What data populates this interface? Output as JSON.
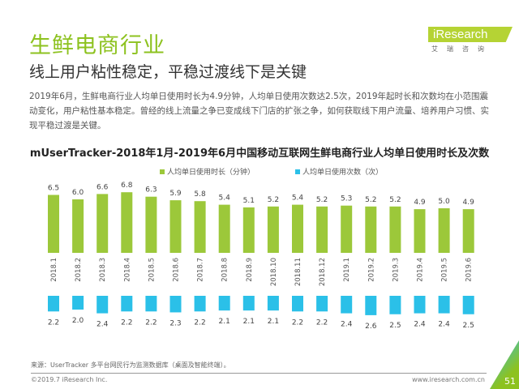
{
  "header": {
    "title": "生鲜电商行业",
    "subtitle": "线上用户粘性稳定，平稳过渡线下是关键",
    "body": "2019年6月，生鲜电商行业人均单日使用时长为4.9分钟，人均单日使用次数达2.5次，2019年起时长和次数均在小范围震动变化，用户粘性基本稳定。曾经的线上流量之争已变成线下门店的扩张之争，如何获取线下用户流量、培养用户习惯、实现平稳过渡是关键。"
  },
  "logo": {
    "text": "iResearch",
    "cn": "艾瑞咨询"
  },
  "footer": {
    "source": "来源：UserTracker 多平台网民行为监测数据库（桌面及智能终端）。",
    "copyright": "©2019.7 iResearch Inc.",
    "url": "www.iresearch.com.cn",
    "page": "51"
  },
  "colors": {
    "green": "#9cc83a",
    "blue": "#2bc0e8",
    "accent": "#8dc21f"
  },
  "chart_data": {
    "type": "bar",
    "title": "mUserTracker-2018年1月-2019年6月中国移动互联网生鲜电商行业人均单日使用时长及次数",
    "legend_position": "top",
    "grid": false,
    "categories": [
      "2018.1",
      "2018.2",
      "2018.3",
      "2018.4",
      "2018.5",
      "2018.6",
      "2018.7",
      "2018.8",
      "2018.9",
      "2018.10",
      "2018.11",
      "2018.12",
      "2019.1",
      "2019.2",
      "2019.3",
      "2019.4",
      "2019.5",
      "2019.6"
    ],
    "series": [
      {
        "name": "人均单日使用时长（分钟）",
        "values": [
          6.5,
          6.0,
          6.6,
          6.8,
          6.3,
          5.9,
          5.8,
          5.4,
          5.1,
          5.2,
          5.4,
          5.2,
          5.3,
          5.2,
          5.2,
          4.9,
          5.0,
          4.9
        ]
      },
      {
        "name": "人均单日使用次数（次）",
        "values": [
          2.2,
          2.0,
          2.4,
          2.2,
          2.2,
          2.3,
          2.2,
          2.1,
          2.1,
          2.1,
          2.2,
          2.2,
          2.4,
          2.6,
          2.5,
          2.4,
          2.4,
          2.5
        ]
      }
    ]
  }
}
